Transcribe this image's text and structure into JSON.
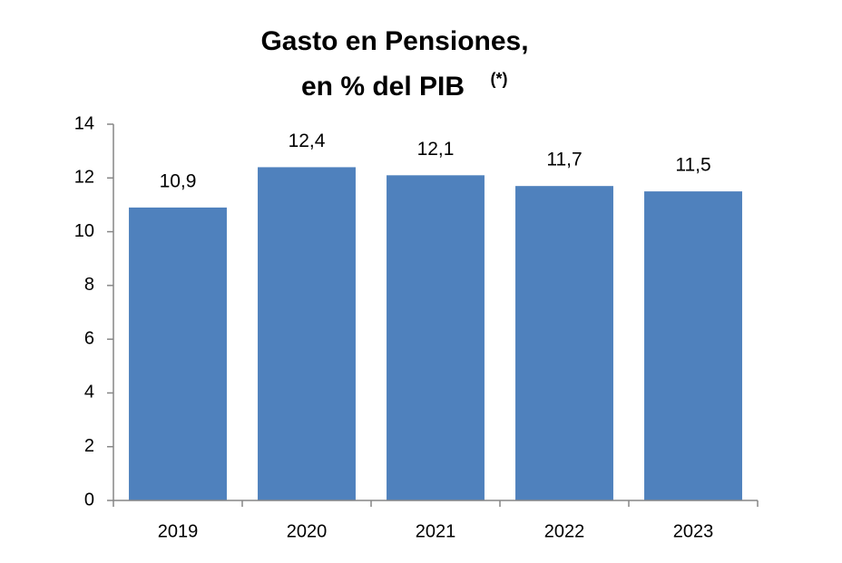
{
  "chart_data": {
    "type": "bar",
    "title": [
      "Gasto en Pensiones,",
      "en % del PIB"
    ],
    "title_note": "(*)",
    "categories": [
      "2019",
      "2020",
      "2021",
      "2022",
      "2023"
    ],
    "values": [
      10.9,
      12.4,
      12.1,
      11.7,
      11.5
    ],
    "value_labels": [
      "10,9",
      "12,4",
      "12,1",
      "11,7",
      "11,5"
    ],
    "color": "#4f81bd",
    "ylim": [
      0,
      14
    ],
    "yticks": [
      0,
      2,
      4,
      6,
      8,
      10,
      12,
      14
    ],
    "grid": false
  }
}
